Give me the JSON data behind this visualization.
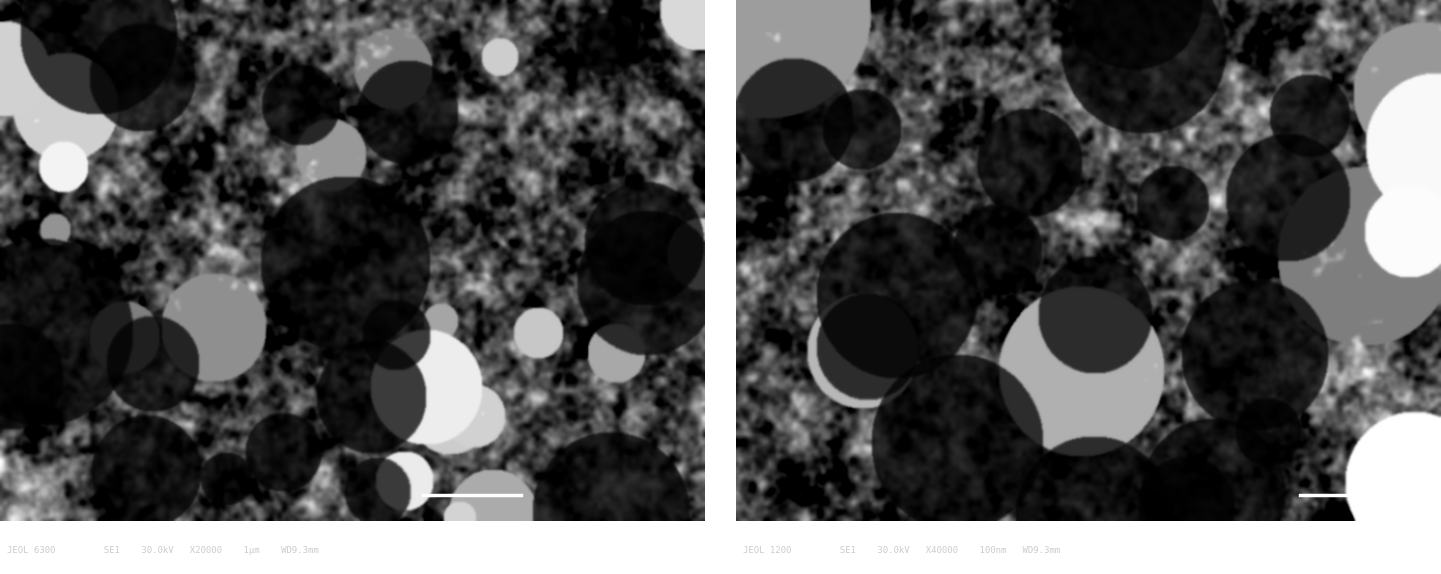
{
  "figure_width": 14.41,
  "figure_height": 5.74,
  "dpi": 100,
  "background_color": "#ffffff",
  "left_image": {
    "info_bar_color": "#111111",
    "info_text": "JEOL 6300         SE1    30.0kV   X20000    1μm    WD9.3mm"
  },
  "right_image": {
    "info_bar_color": "#111111",
    "info_text": "JEOL 1200         SE1    30.0kV   X40000    100nm   WD9.3mm"
  },
  "gap_color": "#ffffff",
  "text_color": "#cccccc",
  "scale_bar_color": "#ffffff"
}
